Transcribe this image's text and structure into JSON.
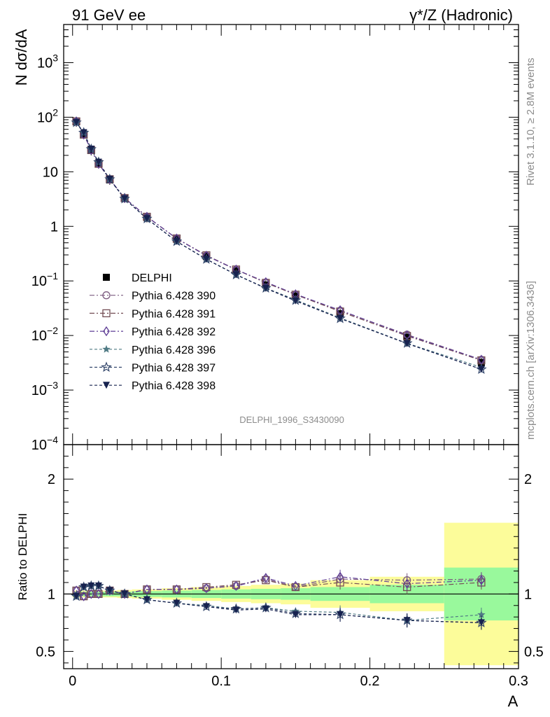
{
  "header": {
    "left_title": "91 GeV ee",
    "right_title": "γ*/Z (Hadronic)",
    "watermark": "DELPHI_1996_S3430090",
    "side_text_top": "Rivet 3.1.10, ≥ 2.8M events",
    "side_text_bottom": "mcplots.cern.ch [arXiv:1306.3436]"
  },
  "colors": {
    "band_inner": "#99f99c",
    "band_outer": "#fcfc9a",
    "s390": "#7c5b80",
    "s391": "#744e55",
    "s392": "#5e3d95",
    "s396": "#4f7a84",
    "s397": "#33466b",
    "s398": "#17224f"
  },
  "chart_data": [
    {
      "type": "line",
      "panel": "main",
      "ylabel": "N dσ/dA",
      "yscale": "log",
      "ylim": [
        0.0001,
        5000
      ],
      "xlim": [
        -0.006,
        0.3
      ],
      "yticks": [
        "10^-4",
        "10^-3",
        "10^-2",
        "10^-1",
        "1",
        "10",
        "10^2",
        "10^3"
      ],
      "x": [
        0.0025,
        0.0075,
        0.0125,
        0.0175,
        0.025,
        0.035,
        0.05,
        0.07,
        0.09,
        0.11,
        0.13,
        0.15,
        0.18,
        0.225,
        0.275
      ],
      "series": [
        {
          "name": "DELPHI",
          "marker": "square-filled",
          "values": [
            82,
            49,
            24.5,
            14,
            7.1,
            3.3,
            1.45,
            0.58,
            0.28,
            0.152,
            0.084,
            0.053,
            0.025,
            0.0093,
            0.0032
          ]
        },
        {
          "name": "Pythia 6.428 390",
          "marker": "circle-open",
          "values": [
            84,
            48,
            25,
            14,
            7.3,
            3.3,
            1.5,
            0.6,
            0.29,
            0.16,
            0.094,
            0.056,
            0.0285,
            0.0104,
            0.0036
          ]
        },
        {
          "name": "Pythia 6.428 391",
          "marker": "square-open",
          "values": [
            84,
            48,
            25,
            14,
            7.3,
            3.3,
            1.5,
            0.6,
            0.295,
            0.162,
            0.092,
            0.056,
            0.0275,
            0.0098,
            0.0035
          ]
        },
        {
          "name": "Pythia 6.428 392",
          "marker": "diamond-open",
          "values": [
            84,
            48,
            25,
            14,
            7.3,
            3.3,
            1.5,
            0.6,
            0.29,
            0.162,
            0.095,
            0.057,
            0.029,
            0.0101,
            0.0036
          ]
        },
        {
          "name": "Pythia 6.428 396",
          "marker": "star-filled",
          "values": [
            80,
            52,
            26,
            15,
            7.3,
            3.2,
            1.38,
            0.53,
            0.25,
            0.13,
            0.074,
            0.045,
            0.021,
            0.0072,
            0.0026
          ]
        },
        {
          "name": "Pythia 6.428 397",
          "marker": "star-open",
          "values": [
            80,
            52,
            26,
            15,
            7.3,
            3.2,
            1.38,
            0.53,
            0.25,
            0.13,
            0.074,
            0.044,
            0.0205,
            0.0072,
            0.0024
          ]
        },
        {
          "name": "Pythia 6.428 398",
          "marker": "triangle-down-filled",
          "values": [
            80,
            52,
            26,
            15,
            7.3,
            3.2,
            1.38,
            0.53,
            0.25,
            0.13,
            0.073,
            0.043,
            0.0205,
            0.0071,
            0.0024
          ]
        }
      ],
      "legend_position": "center-left"
    },
    {
      "type": "line",
      "panel": "ratio",
      "xlabel": "A",
      "ylabel": "Ratio to DELPHI",
      "ylim": [
        0.35,
        2.3
      ],
      "yticks": [
        "0.5",
        "1",
        "2"
      ],
      "xticks": [
        "0",
        "0.1",
        "0.2",
        "0.3"
      ],
      "band_edges": [
        0,
        0.005,
        0.01,
        0.015,
        0.02,
        0.03,
        0.04,
        0.06,
        0.08,
        0.1,
        0.12,
        0.14,
        0.16,
        0.2,
        0.25,
        0.3
      ],
      "band_inner_halfwidth": [
        0.02,
        0.02,
        0.02,
        0.02,
        0.02,
        0.02,
        0.025,
        0.03,
        0.035,
        0.04,
        0.045,
        0.05,
        0.06,
        0.08,
        0.23
      ],
      "band_outer_halfwidth": [
        0.03,
        0.03,
        0.03,
        0.03,
        0.03,
        0.035,
        0.04,
        0.05,
        0.06,
        0.07,
        0.08,
        0.09,
        0.12,
        0.15,
        0.62
      ],
      "series": [
        {
          "name": "Pythia 6.428 390",
          "values": [
            1.03,
            0.98,
            1.0,
            1.0,
            1.03,
            1.0,
            1.04,
            1.04,
            1.05,
            1.07,
            1.13,
            1.06,
            1.13,
            1.12,
            1.13
          ]
        },
        {
          "name": "Pythia 6.428 391",
          "values": [
            1.03,
            0.98,
            1.0,
            1.0,
            1.03,
            1.0,
            1.04,
            1.04,
            1.06,
            1.08,
            1.12,
            1.06,
            1.1,
            1.06,
            1.1
          ]
        },
        {
          "name": "Pythia 6.428 392",
          "values": [
            1.03,
            0.98,
            1.0,
            1.0,
            1.03,
            1.0,
            1.04,
            1.04,
            1.05,
            1.07,
            1.14,
            1.07,
            1.15,
            1.09,
            1.12
          ]
        },
        {
          "name": "Pythia 6.428 396",
          "values": [
            0.98,
            1.06,
            1.07,
            1.07,
            1.03,
            1.0,
            0.95,
            0.92,
            0.9,
            0.87,
            0.88,
            0.85,
            0.84,
            0.77,
            0.82
          ]
        },
        {
          "name": "Pythia 6.428 397",
          "values": [
            0.98,
            1.06,
            1.07,
            1.07,
            1.03,
            1.0,
            0.95,
            0.92,
            0.89,
            0.87,
            0.88,
            0.83,
            0.82,
            0.77,
            0.75
          ]
        },
        {
          "name": "Pythia 6.428 398",
          "values": [
            0.98,
            1.06,
            1.07,
            1.07,
            1.03,
            1.0,
            0.95,
            0.92,
            0.89,
            0.86,
            0.87,
            0.82,
            0.82,
            0.77,
            0.75
          ]
        }
      ]
    }
  ]
}
